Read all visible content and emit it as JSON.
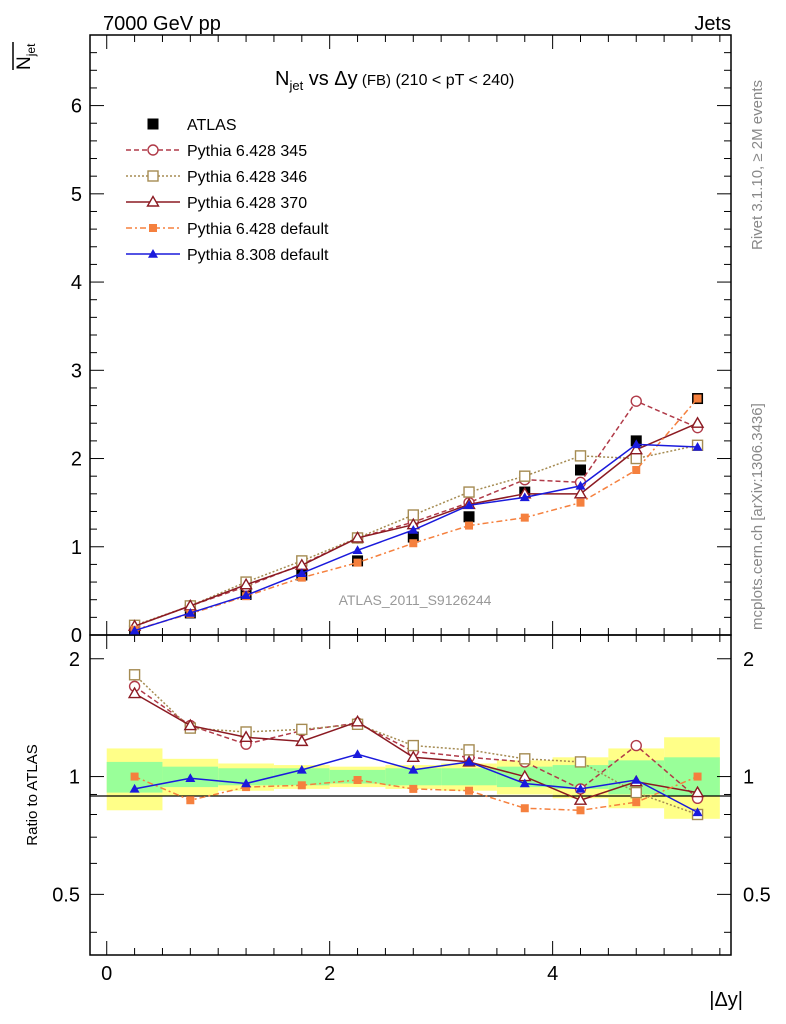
{
  "header": {
    "left": "7000 GeV pp",
    "right": "Jets"
  },
  "side_text": {
    "rivet": "Rivet 3.1.10, ≥ 2M events",
    "mcplots": "mcplots.cern.ch [arXiv:1306.3436]"
  },
  "chart_data": {
    "type": "line",
    "title_main": "N",
    "title_sub": "jet",
    "title_rest": " vs Δy",
    "title_small": " (FB)",
    "title_cut": " (210 < pT < 240)",
    "ylabel_main": "N",
    "ylabel_sub": "jet",
    "xlabel": "|Δy|",
    "ratio_ylabel": "Ratio to ATLAS",
    "watermark": "ATLAS_2011_S9126244",
    "xlim": [
      -0.15,
      5.6
    ],
    "ylim": [
      0,
      6.8
    ],
    "ratio_ylim": [
      0.35,
      2.3
    ],
    "ratio_log": true,
    "x_ticks": [
      "0",
      "2",
      "4"
    ],
    "y_ticks": [
      "0",
      "1",
      "2",
      "3",
      "4",
      "5",
      "6"
    ],
    "ratio_ticks": [
      "0.5",
      "1",
      "2"
    ],
    "x": [
      0.25,
      0.75,
      1.25,
      1.75,
      2.25,
      2.75,
      3.25,
      3.75,
      4.25,
      4.75,
      5.3
    ],
    "x_bins": [
      [
        0,
        0.5
      ],
      [
        0.5,
        1.0
      ],
      [
        1.0,
        1.5
      ],
      [
        1.5,
        2.0
      ],
      [
        2.0,
        2.5
      ],
      [
        2.5,
        3.0
      ],
      [
        3.0,
        3.5
      ],
      [
        3.5,
        4.0
      ],
      [
        4.0,
        4.5
      ],
      [
        4.5,
        5.0
      ],
      [
        5.0,
        5.5
      ]
    ],
    "data": {
      "name": "ATLAS",
      "values": [
        0.06,
        0.25,
        0.46,
        0.68,
        0.84,
        1.11,
        1.34,
        1.62,
        1.87,
        2.2,
        2.68
      ],
      "band_inner": [
        [
          0.91,
          1.09
        ],
        [
          0.94,
          1.06
        ],
        [
          0.95,
          1.05
        ],
        [
          0.95,
          1.05
        ],
        [
          0.96,
          1.04
        ],
        [
          0.95,
          1.05
        ],
        [
          0.95,
          1.05
        ],
        [
          0.94,
          1.06
        ],
        [
          0.93,
          1.07
        ],
        [
          0.9,
          1.1
        ],
        [
          0.89,
          1.12
        ]
      ],
      "band_outer": [
        [
          0.82,
          1.18
        ],
        [
          0.89,
          1.11
        ],
        [
          0.92,
          1.08
        ],
        [
          0.93,
          1.07
        ],
        [
          0.94,
          1.06
        ],
        [
          0.93,
          1.07
        ],
        [
          0.92,
          1.08
        ],
        [
          0.9,
          1.1
        ],
        [
          0.88,
          1.12
        ],
        [
          0.83,
          1.18
        ],
        [
          0.78,
          1.26
        ]
      ]
    },
    "series": [
      {
        "name": "Pythia 6.428 345",
        "color": "#b03a48",
        "marker": "circle-open",
        "dash": "5,3",
        "values": [
          0.1,
          0.33,
          0.55,
          0.8,
          1.1,
          1.28,
          1.5,
          1.76,
          1.73,
          2.65,
          2.35
        ],
        "ratio": [
          1.7,
          1.35,
          1.21,
          1.31,
          1.37,
          1.16,
          1.12,
          1.09,
          0.93,
          1.2,
          0.88
        ]
      },
      {
        "name": "Pythia 6.428 346",
        "color": "#a58b52",
        "marker": "square-open",
        "dash": "2,2",
        "values": [
          0.11,
          0.33,
          0.6,
          0.84,
          1.1,
          1.36,
          1.62,
          1.8,
          2.03,
          2.0,
          2.15
        ],
        "ratio": [
          1.82,
          1.33,
          1.3,
          1.32,
          1.36,
          1.2,
          1.17,
          1.11,
          1.09,
          0.91,
          0.8
        ]
      },
      {
        "name": "Pythia 6.428 370",
        "color": "#8b1a22",
        "marker": "triangle-open",
        "dash": "",
        "values": [
          0.1,
          0.33,
          0.57,
          0.79,
          1.1,
          1.25,
          1.48,
          1.6,
          1.6,
          2.1,
          2.4
        ],
        "ratio": [
          1.63,
          1.35,
          1.26,
          1.23,
          1.38,
          1.12,
          1.09,
          1.0,
          0.87,
          0.97,
          0.91
        ]
      },
      {
        "name": "Pythia 6.428 default",
        "color": "#f5803e",
        "marker": "square-filled",
        "dash": "6,3,2,3",
        "values": [
          0.06,
          0.24,
          0.44,
          0.65,
          0.82,
          1.04,
          1.24,
          1.33,
          1.5,
          1.87,
          2.68
        ],
        "ratio": [
          1.0,
          0.87,
          0.94,
          0.95,
          0.98,
          0.93,
          0.92,
          0.83,
          0.82,
          0.86,
          1.0
        ]
      },
      {
        "name": "Pythia 8.308 default",
        "color": "#1a1adc",
        "marker": "triangle-filled",
        "dash": "",
        "values": [
          0.05,
          0.25,
          0.45,
          0.7,
          0.96,
          1.19,
          1.47,
          1.56,
          1.69,
          2.16,
          2.13
        ],
        "ratio": [
          0.93,
          0.99,
          0.96,
          1.04,
          1.14,
          1.04,
          1.09,
          0.96,
          0.93,
          0.98,
          0.81
        ]
      }
    ]
  }
}
